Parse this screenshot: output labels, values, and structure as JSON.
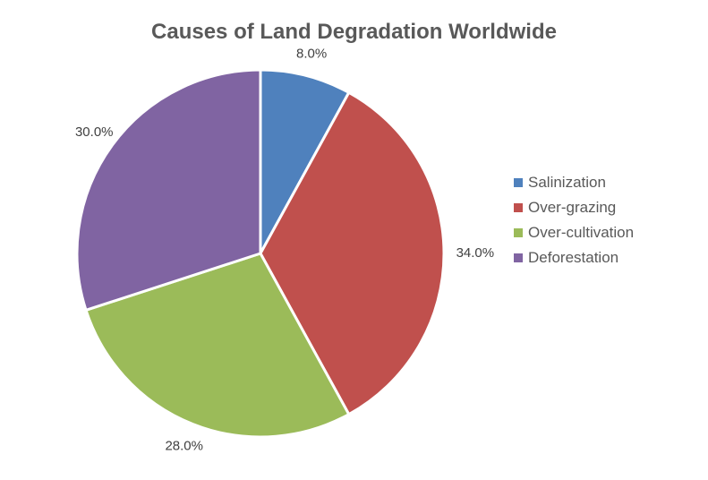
{
  "chart_data": {
    "type": "pie",
    "title": "Causes of Land Degradation Worldwide",
    "categories": [
      "Salinization",
      "Over-grazing",
      "Over-cultivation",
      "Deforestation"
    ],
    "values": [
      8.0,
      34.0,
      28.0,
      30.0
    ],
    "labels": [
      "8.0%",
      "34.0%",
      "28.0%",
      "30.0%"
    ],
    "colors": [
      "#4f81bd",
      "#c0504d",
      "#9bbb59",
      "#8064a2"
    ],
    "legend_position": "right"
  }
}
